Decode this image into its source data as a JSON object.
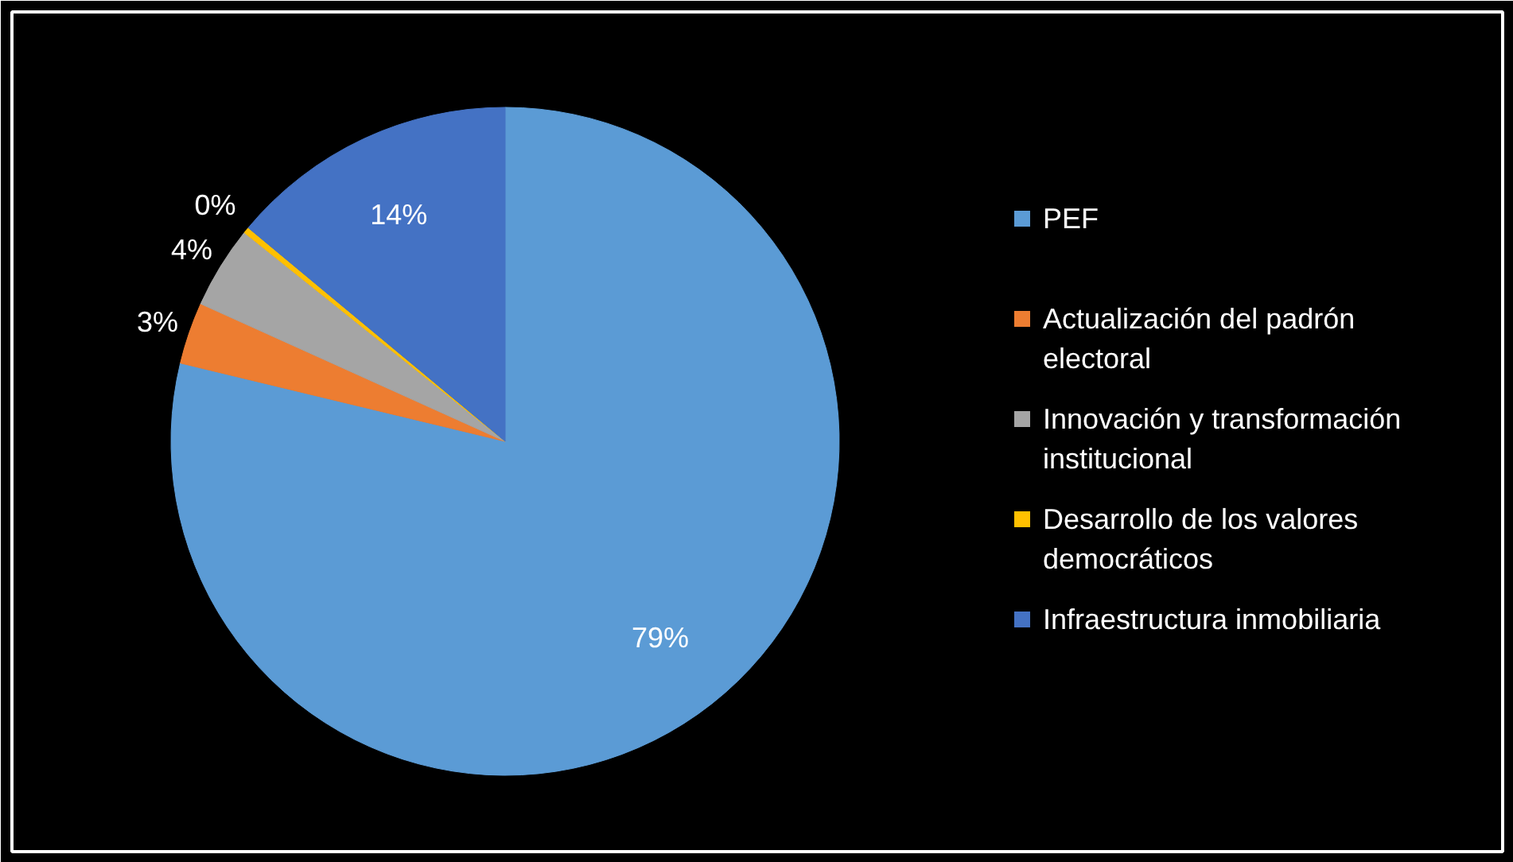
{
  "chart_data": {
    "type": "pie",
    "categories": [
      "PEF",
      "Actualización del padrón electoral",
      "Innovación y transformación institucional",
      "Desarrollo de los valores democráticos",
      "Infraestructura inmobiliaria"
    ],
    "values": [
      79,
      3,
      4,
      0.3,
      14
    ],
    "value_labels": [
      "79%",
      "3%",
      "4%",
      "0%",
      "14%"
    ],
    "colors": [
      "#5b9bd5",
      "#ed7d31",
      "#a5a5a5",
      "#ffc000",
      "#4472c4"
    ],
    "legend": "right"
  }
}
